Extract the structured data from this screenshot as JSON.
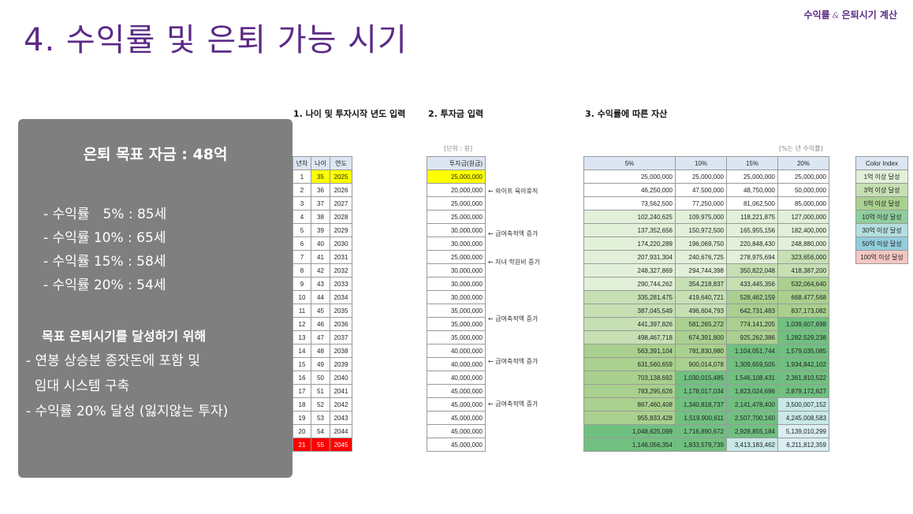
{
  "header": {
    "title": "4. 수익률 및 은퇴 가능 시기",
    "corner_title_a": "수익률",
    "corner_amp": "&",
    "corner_title_b": "은퇴시기 계산"
  },
  "sections": {
    "s1": "1. 나이 및 투자시작 년도 입력",
    "s2": "2. 투자금 입력",
    "s3": "3. 수익률에 따른 자산"
  },
  "summary": {
    "goal": "은퇴 목표 자금 : 48억",
    "rates": [
      "- 수익률　5% : 85세",
      "- 수익률 10% : 65세",
      "- 수익률 15% : 58세",
      "- 수익률 20% : 54세"
    ],
    "strategy_title": "목표 은퇴시기를 달성하기 위해",
    "strategy_lines": [
      "- 연봉 상승분 종잣돈에 포함 및",
      "  임대 시스템 구축",
      "- 수익률 20% 달성 (잃지않는 투자)"
    ]
  },
  "units": {
    "left": "[단위 : 원]",
    "right": "[%는 년 수익률]"
  },
  "age_table": {
    "headers": [
      "년차",
      "나이",
      "연도"
    ],
    "rows": [
      [
        "1",
        "35",
        "2025"
      ],
      [
        "2",
        "36",
        "2026"
      ],
      [
        "3",
        "37",
        "2027"
      ],
      [
        "4",
        "38",
        "2028"
      ],
      [
        "5",
        "39",
        "2029"
      ],
      [
        "6",
        "40",
        "2030"
      ],
      [
        "7",
        "41",
        "2031"
      ],
      [
        "8",
        "42",
        "2032"
      ],
      [
        "9",
        "43",
        "2033"
      ],
      [
        "10",
        "44",
        "2034"
      ],
      [
        "11",
        "45",
        "2035"
      ],
      [
        "12",
        "46",
        "2036"
      ],
      [
        "13",
        "47",
        "2037"
      ],
      [
        "14",
        "48",
        "2038"
      ],
      [
        "15",
        "49",
        "2039"
      ],
      [
        "16",
        "50",
        "2040"
      ],
      [
        "17",
        "51",
        "2041"
      ],
      [
        "18",
        "52",
        "2042"
      ],
      [
        "19",
        "53",
        "2043"
      ],
      [
        "20",
        "54",
        "2044"
      ],
      [
        "21",
        "55",
        "2045"
      ]
    ]
  },
  "investment": {
    "header": "투자금(원금)",
    "values": [
      "25,000,000",
      "20,000,000",
      "25,000,000",
      "25,000,000",
      "30,000,000",
      "30,000,000",
      "25,000,000",
      "30,000,000",
      "30,000,000",
      "30,000,000",
      "35,000,000",
      "35,000,000",
      "35,000,000",
      "40,000,000",
      "40,000,000",
      "40,000,000",
      "45,000,000",
      "45,000,000",
      "45,000,000",
      "45,000,000",
      "45,000,000"
    ],
    "notes": [
      {
        "row": 2,
        "text": "← 와이프 육아휴직"
      },
      {
        "row": 5,
        "text": "← 급여축적액 증가"
      },
      {
        "row": 7,
        "text": "← 자녀 학원비 증가"
      },
      {
        "row": 11,
        "text": "← 급여축적액 증가"
      },
      {
        "row": 14,
        "text": "← 급여축적액 증가"
      },
      {
        "row": 17,
        "text": "← 급여축적액 증가"
      }
    ]
  },
  "assets": {
    "headers": [
      "5%",
      "10%",
      "15%",
      "20%"
    ],
    "rows": [
      [
        "25,000,000",
        "25,000,000",
        "25,000,000",
        "25,000,000"
      ],
      [
        "46,250,000",
        "47,500,000",
        "48,750,000",
        "50,000,000"
      ],
      [
        "73,562,500",
        "77,250,000",
        "81,062,500",
        "85,000,000"
      ],
      [
        "102,240,625",
        "109,975,000",
        "118,221,875",
        "127,000,000"
      ],
      [
        "137,352,656",
        "150,972,500",
        "165,955,156",
        "182,400,000"
      ],
      [
        "174,220,289",
        "196,069,750",
        "220,848,430",
        "248,880,000"
      ],
      [
        "207,931,304",
        "240,676,725",
        "278,975,694",
        "323,656,000"
      ],
      [
        "248,327,869",
        "294,744,398",
        "350,822,048",
        "418,387,200"
      ],
      [
        "290,744,262",
        "354,218,837",
        "433,445,356",
        "532,064,640"
      ],
      [
        "335,281,475",
        "419,640,721",
        "528,462,159",
        "668,477,568"
      ],
      [
        "387,045,549",
        "496,604,793",
        "642,731,483",
        "837,173,082"
      ],
      [
        "441,397,826",
        "581,265,272",
        "774,141,205",
        "1,039,607,698"
      ],
      [
        "498,467,718",
        "674,391,800",
        "925,262,386",
        "1,282,529,238"
      ],
      [
        "563,391,104",
        "781,830,980",
        "1,104,051,744",
        "1,579,035,085"
      ],
      [
        "631,560,659",
        "900,014,078",
        "1,309,659,505",
        "1,934,842,102"
      ],
      [
        "703,138,692",
        "1,030,015,485",
        "1,546,108,431",
        "2,361,810,522"
      ],
      [
        "783,295,626",
        "1,178,017,034",
        "1,823,024,696",
        "2,879,172,627"
      ],
      [
        "867,460,408",
        "1,340,818,737",
        "2,141,478,400",
        "3,500,007,152"
      ],
      [
        "955,833,428",
        "1,519,900,611",
        "2,507,700,160",
        "4,245,008,583"
      ],
      [
        "1,048,625,099",
        "1,716,890,672",
        "2,928,855,184",
        "5,139,010,299"
      ],
      [
        "1,146,056,354",
        "1,933,579,739",
        "3,413,183,462",
        "6,211,812,359"
      ]
    ]
  },
  "color_index": {
    "header": "Color Index",
    "items": [
      {
        "label": "1억 이상 달성",
        "color": "#e2f0d9"
      },
      {
        "label": "3억 이상 달성",
        "color": "#c6e0b4"
      },
      {
        "label": "5억 이상 달성",
        "color": "#a9d08e"
      },
      {
        "label": "10억 이상 달성",
        "color": "#8fce9c"
      },
      {
        "label": "30억 이상 달성",
        "color": "#b4dee0"
      },
      {
        "label": "50억 이상 달성",
        "color": "#92cddc"
      },
      {
        "label": "100억 이상 달성",
        "color": "#f4c7c3"
      }
    ],
    "tier_colors": [
      "#ffffff",
      "#e2f0d9",
      "#c6e0b4",
      "#a9d08e",
      "#70c080",
      "#c9e8e8",
      "#daeef3"
    ]
  },
  "colors": {
    "title": "#5b2a86",
    "summary_bg": "#7f7f7f",
    "highlight_yellow": "#ffff00",
    "highlight_red": "#ff0000",
    "header_blue": "#dce6f2"
  }
}
